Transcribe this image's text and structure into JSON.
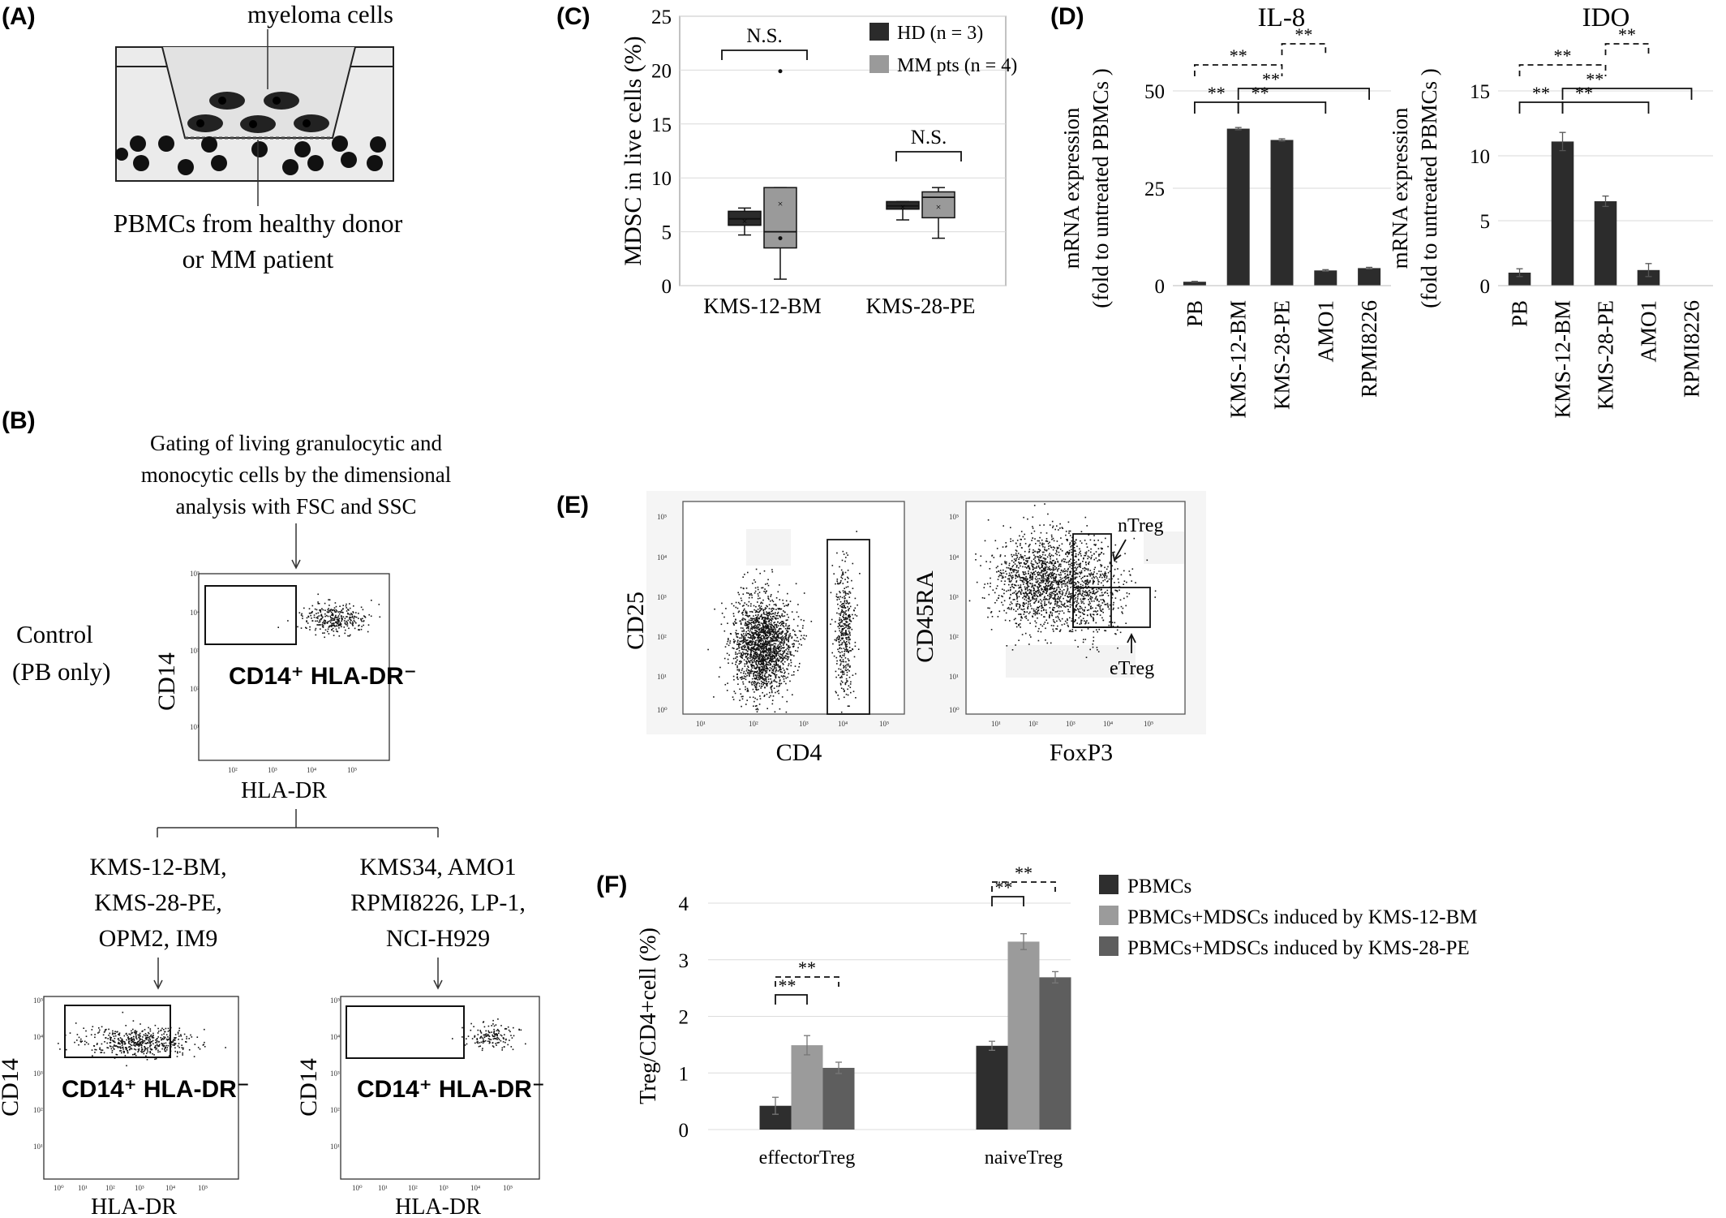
{
  "panels": {
    "A": {
      "label": "(A)",
      "myeloma": "myeloma cells",
      "pbmc_line1": "PBMCs from healthy donor",
      "pbmc_line2": "or MM patient"
    },
    "B": {
      "label": "(B)",
      "gating_line1": "Gating of living granulocytic and",
      "gating_line2": "monocytic cells by the dimensional",
      "gating_line3": "analysis with FSC and SSC",
      "control_line1": "Control",
      "control_line2": "(PB only)",
      "gate_label": "CD14⁺ HLA-DR⁻",
      "xaxis": "HLA-DR",
      "yaxis": "CD14",
      "group1": [
        "KMS-12-BM,",
        "KMS-28-PE,",
        "OPM2, IM9"
      ],
      "group2": [
        "KMS34, AMO1",
        "RPMI8226, LP-1,",
        "NCI-H929"
      ],
      "flow_ticks": [
        "10⁰",
        "10¹",
        "10²",
        "10³",
        "10⁴",
        "10⁵"
      ]
    },
    "C": {
      "label": "(C)"
    },
    "D": {
      "label": "(D)"
    },
    "E": {
      "label": "(E)",
      "plot1_x": "CD4",
      "plot1_y": "CD25",
      "plot2_x": "FoxP3",
      "plot2_y": "CD45RA",
      "ntreg": "nTreg",
      "etreg": "eTreg"
    },
    "F": {
      "label": "(F)"
    }
  },
  "chart_data": [
    {
      "panel": "C",
      "type": "box",
      "ylabel": "MDSC in live cells (%)",
      "ylim": [
        0,
        25
      ],
      "yticks": [
        "0",
        "5",
        "10",
        "15",
        "20",
        "25"
      ],
      "categories": [
        "KMS-12-BM",
        "KMS-28-PE"
      ],
      "series": [
        {
          "name": "HD (n = 3)",
          "color": "#2b2b2b",
          "boxes": [
            {
              "min": 4.7,
              "q1": 5.6,
              "median": 6.2,
              "q3": 6.9,
              "max": 7.2,
              "mean": 6.0
            },
            {
              "min": 6.1,
              "q1": 7.1,
              "median": 7.4,
              "q3": 7.8,
              "max": 7.8,
              "mean": 7.3
            }
          ]
        },
        {
          "name": "MM pts (n = 4)",
          "color": "#9a9a9a",
          "boxes": [
            {
              "min": 0.6,
              "q1": 3.5,
              "median": 5.0,
              "q3": 9.1,
              "max": 9.1,
              "mean": 7.6,
              "points": [
                4.4,
                19.9
              ]
            },
            {
              "min": 4.4,
              "q1": 6.3,
              "median": 8.2,
              "q3": 8.7,
              "max": 9.1,
              "mean": 7.3
            }
          ]
        }
      ],
      "annotations": [
        "N.S.",
        "N.S."
      ]
    },
    {
      "panel": "D",
      "type": "bar",
      "title": "IL-8",
      "ylabel": "mRNA expression (fold to untreated PBMCs )",
      "ylabel_line1": "mRNA expression",
      "ylabel_line2": "(fold to untreated PBMCs )",
      "ylim": [
        0,
        50
      ],
      "yticks": [
        "0",
        "25",
        "50"
      ],
      "categories": [
        "PB",
        "KMS-12-BM",
        "KMS-28-PE",
        "AMO1",
        "RPMI8226"
      ],
      "values": [
        1.0,
        40.3,
        37.4,
        3.9,
        4.5
      ],
      "errors": [
        0.1,
        0.3,
        0.3,
        0.2,
        0.2
      ],
      "significance": [
        "**",
        "**",
        "**",
        "**",
        "**"
      ]
    },
    {
      "panel": "D",
      "type": "bar",
      "title": "IDO",
      "ylabel": "mRNA expression (fold to untreated PBMCs )",
      "ylabel_line1": "mRNA expression",
      "ylabel_line2": "(fold to untreated PBMCs )",
      "ylim": [
        0,
        15
      ],
      "yticks": [
        "0",
        "5",
        "10",
        "15"
      ],
      "categories": [
        "PB",
        "KMS-12-BM",
        "KMS-28-PE",
        "AMO1",
        "RPMI8226"
      ],
      "values": [
        1.0,
        11.1,
        6.5,
        1.2,
        0.0
      ],
      "errors": [
        0.3,
        0.7,
        0.4,
        0.5,
        0.0
      ],
      "significance": [
        "**",
        "**",
        "**",
        "**",
        "**"
      ]
    },
    {
      "panel": "F",
      "type": "bar",
      "ylabel": "Treg/CD4+cell (%)",
      "ylim": [
        0,
        4
      ],
      "yticks": [
        "0",
        "1",
        "2",
        "3",
        "4"
      ],
      "categories": [
        "effectorTreg",
        "naiveTreg"
      ],
      "series": [
        {
          "name": "PBMCs",
          "color": "#2e2e2e",
          "values": [
            0.42,
            1.48
          ],
          "errors": [
            0.15,
            0.08
          ]
        },
        {
          "name": "PBMCs+MDSCs induced by KMS-12-BM",
          "color": "#9b9b9b",
          "values": [
            1.49,
            3.32
          ],
          "errors": [
            0.17,
            0.14
          ]
        },
        {
          "name": "PBMCs+MDSCs induced by KMS-28-PE",
          "color": "#5e5e5e",
          "values": [
            1.09,
            2.69
          ],
          "errors": [
            0.1,
            0.1
          ]
        }
      ],
      "significance": [
        "**",
        "**",
        "**",
        "**"
      ]
    }
  ]
}
